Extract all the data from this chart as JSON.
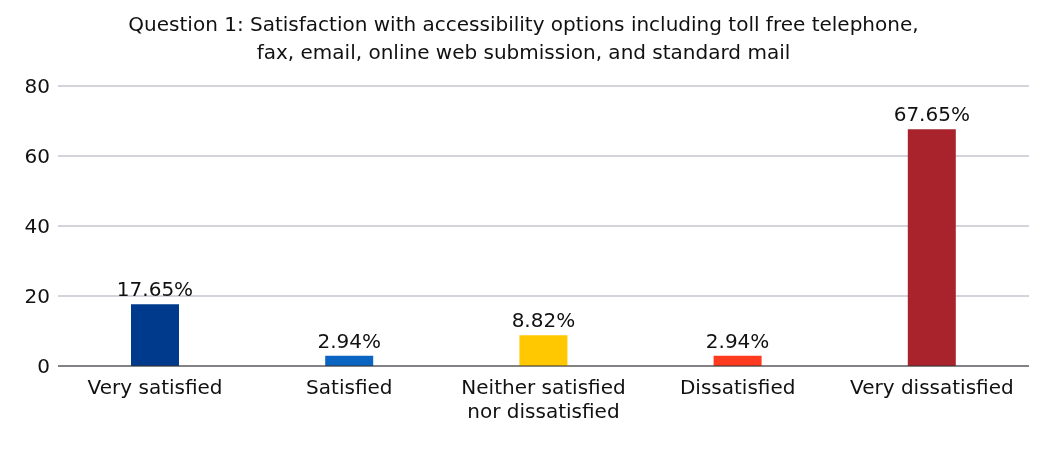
{
  "chart_data": {
    "type": "bar",
    "title": "Question 1: Satisfaction with accessibility options including toll free telephone, fax, email, online web submission, and standard mail",
    "categories": [
      "Very satisfied",
      "Satisfied",
      "Neither satisfied nor dissatisfied",
      "Dissatisfied",
      "Very dissatisfied"
    ],
    "values": [
      17.65,
      2.94,
      8.82,
      2.94,
      67.65
    ],
    "colors": [
      "#003a8c",
      "#0a64c2",
      "#ffc800",
      "#ff3b1f",
      "#a8232c"
    ],
    "value_labels": [
      "17.65%",
      "2.94%",
      "8.82%",
      "2.94%",
      "67.65%"
    ],
    "ylim": [
      0,
      80
    ],
    "yticks": [
      0,
      20,
      40,
      60,
      80
    ],
    "grid": "y"
  }
}
